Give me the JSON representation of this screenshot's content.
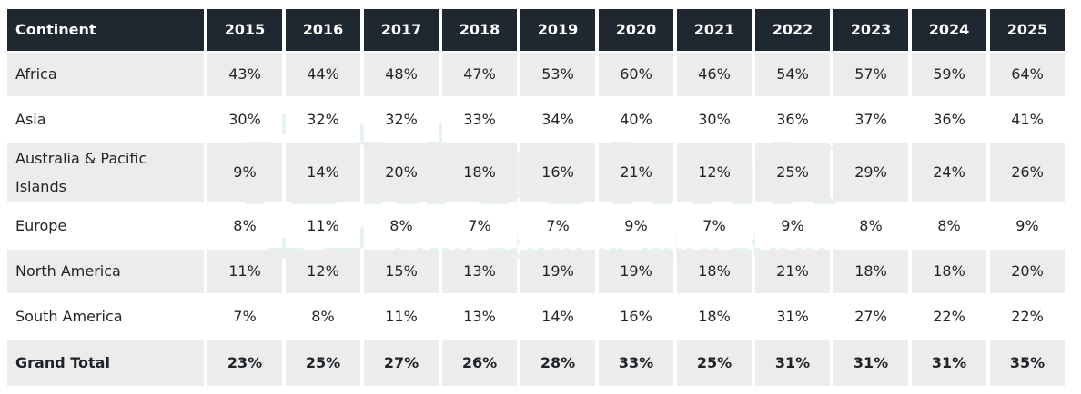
{
  "watermark": {
    "brand": "doslink",
    "tagline": "Education & Migration"
  },
  "chart_data": {
    "type": "table",
    "columns": [
      "Continent",
      "2015",
      "2016",
      "2017",
      "2018",
      "2019",
      "2020",
      "2021",
      "2022",
      "2023",
      "2024",
      "2025"
    ],
    "rows": [
      {
        "label": "Africa",
        "values": [
          "43%",
          "44%",
          "48%",
          "47%",
          "53%",
          "60%",
          "46%",
          "54%",
          "57%",
          "59%",
          "64%"
        ]
      },
      {
        "label": "Asia",
        "values": [
          "30%",
          "32%",
          "32%",
          "33%",
          "34%",
          "40%",
          "30%",
          "36%",
          "37%",
          "36%",
          "41%"
        ]
      },
      {
        "label": "Australia & Pacific Islands",
        "values": [
          "9%",
          "14%",
          "20%",
          "18%",
          "16%",
          "21%",
          "12%",
          "25%",
          "29%",
          "24%",
          "26%"
        ]
      },
      {
        "label": "Europe",
        "values": [
          "8%",
          "11%",
          "8%",
          "7%",
          "7%",
          "9%",
          "7%",
          "9%",
          "8%",
          "8%",
          "9%"
        ]
      },
      {
        "label": "North America",
        "values": [
          "11%",
          "12%",
          "15%",
          "13%",
          "19%",
          "19%",
          "18%",
          "21%",
          "18%",
          "18%",
          "20%"
        ]
      },
      {
        "label": "South America",
        "values": [
          "7%",
          "8%",
          "11%",
          "13%",
          "14%",
          "16%",
          "18%",
          "31%",
          "27%",
          "22%",
          "22%"
        ]
      },
      {
        "label": "Grand Total",
        "values": [
          "23%",
          "25%",
          "27%",
          "26%",
          "28%",
          "33%",
          "25%",
          "31%",
          "31%",
          "31%",
          "35%"
        ]
      }
    ]
  },
  "colors": {
    "header_bg": "#1f2830",
    "header_text": "#ffffff",
    "stripe_bg": "#ececec",
    "watermark": "#4a9aa3"
  }
}
